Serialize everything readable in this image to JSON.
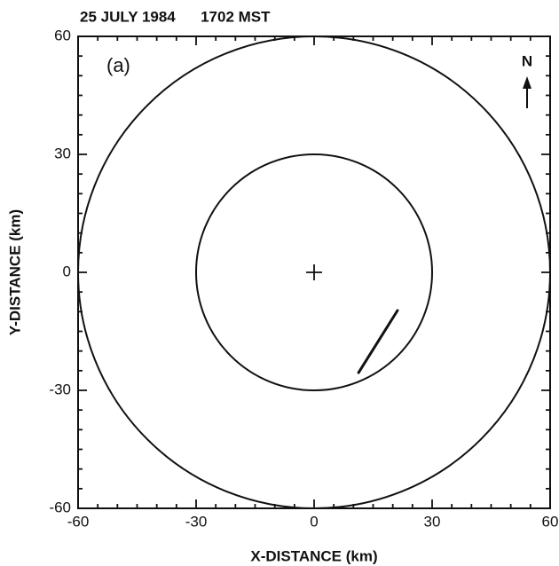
{
  "chart_data": {
    "type": "range-rings",
    "title": "25 JULY 1984      1702 MST",
    "panel_label": "(a)",
    "north_label": "N",
    "xlabel": "X-DISTANCE (km)",
    "ylabel": "Y-DISTANCE (km)",
    "xlim": [
      -60,
      60
    ],
    "ylim": [
      -60,
      60
    ],
    "xticks": [
      -60,
      -30,
      0,
      30,
      60
    ],
    "yticks": [
      -60,
      -30,
      0,
      30,
      60
    ],
    "rings": [
      30,
      60
    ],
    "center": {
      "x": 0,
      "y": 0
    },
    "line": {
      "x": [
        11.3,
        21.2
      ],
      "y": [
        -25.5,
        -9.7
      ]
    },
    "color": "#111111"
  }
}
